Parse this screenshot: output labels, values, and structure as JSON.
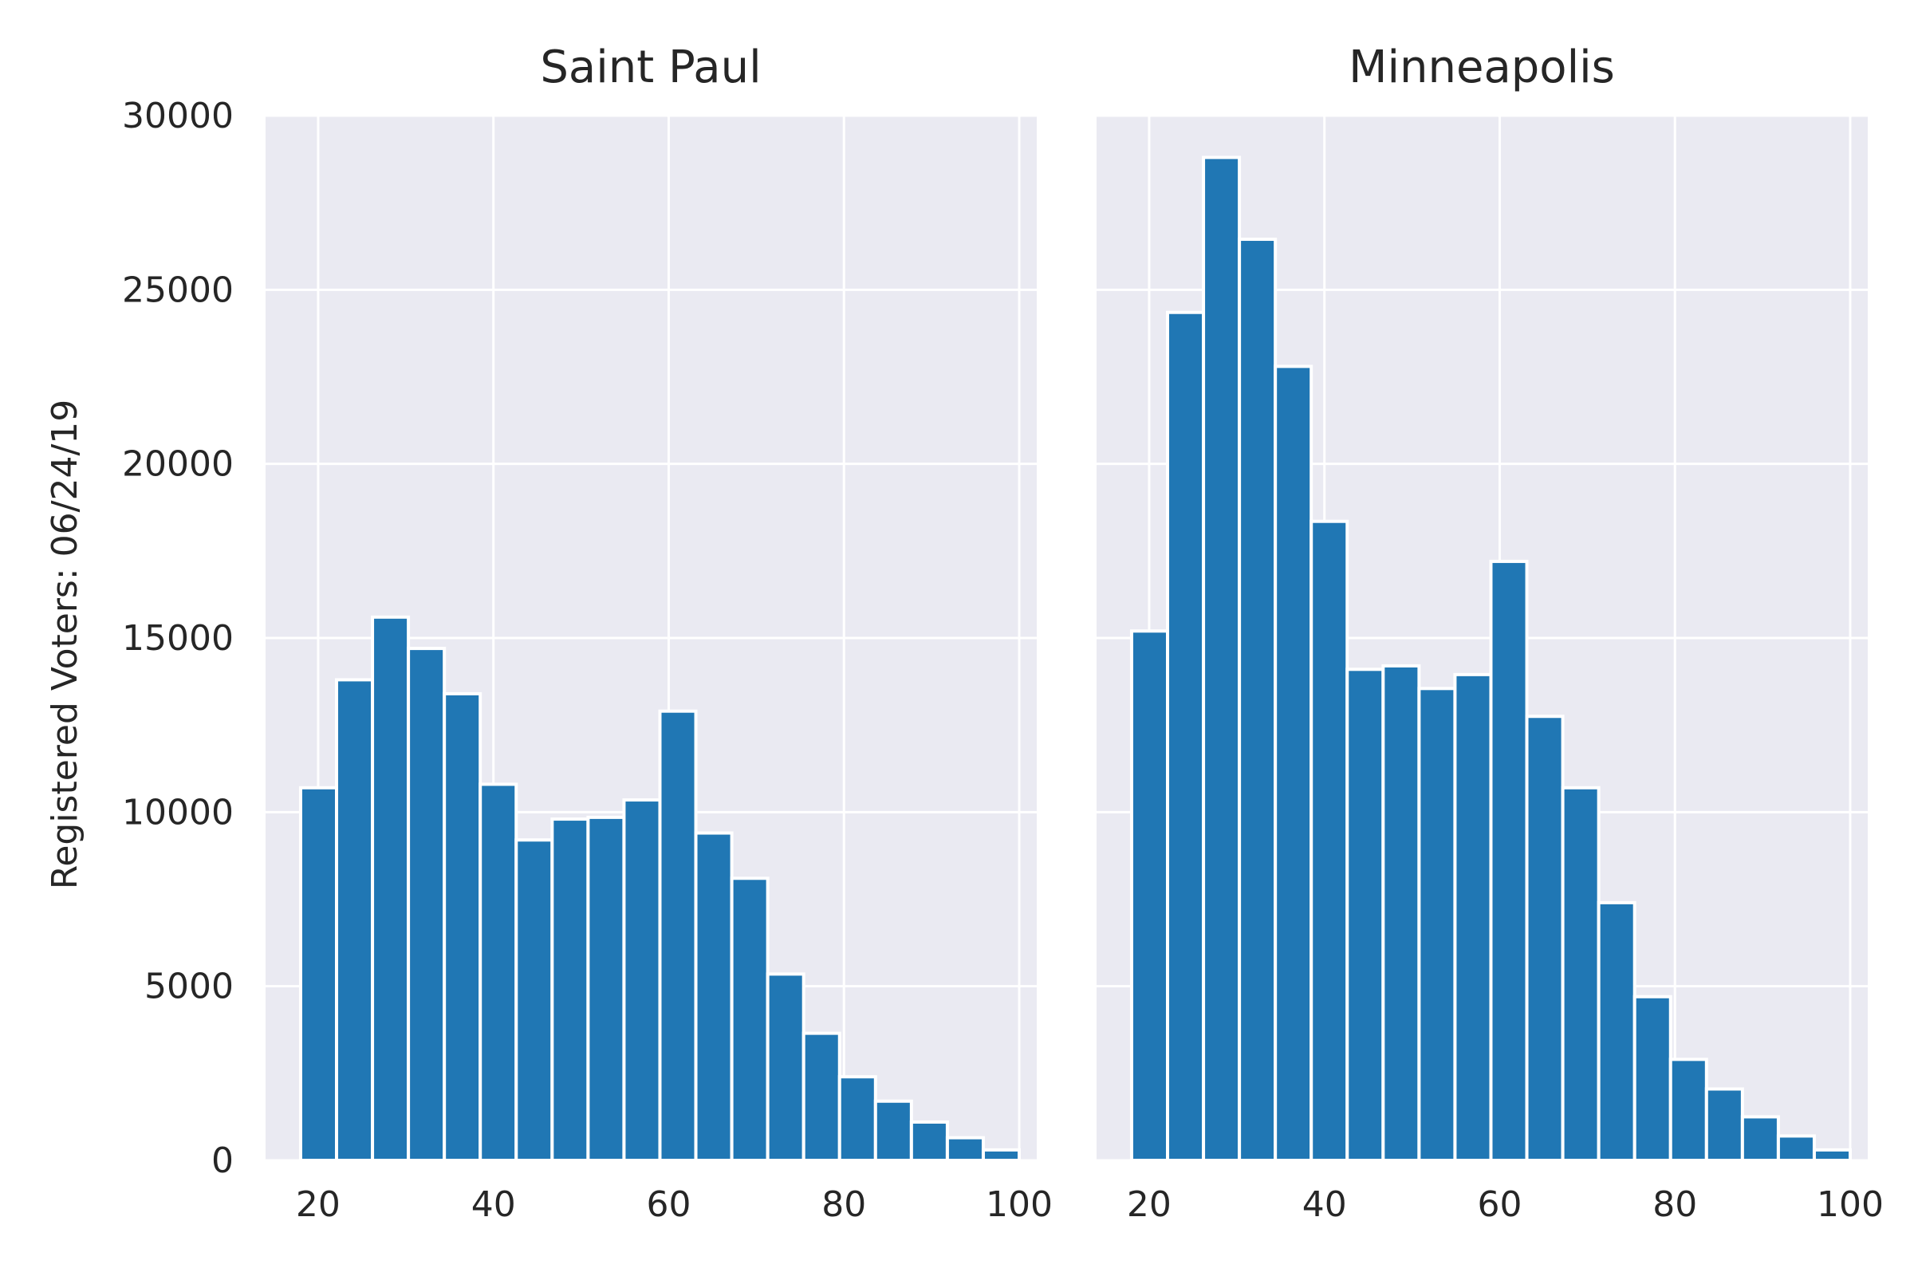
{
  "chart_data": [
    {
      "type": "bar",
      "title": "Saint Paul",
      "xlabel": "",
      "ylabel": "Registered Voters: 06/24/19",
      "xlim": [
        14,
        102
      ],
      "ylim": [
        0,
        30000
      ],
      "xticks": [
        20,
        40,
        60,
        80,
        100
      ],
      "yticks": [
        0,
        5000,
        10000,
        15000,
        20000,
        25000,
        30000
      ],
      "bin_start": 18,
      "bin_width": 4.1,
      "values": [
        10700,
        13800,
        15600,
        14700,
        13400,
        10800,
        9200,
        9800,
        9850,
        10350,
        12900,
        9400,
        8100,
        5350,
        3650,
        2400,
        1700,
        1100,
        650,
        300
      ],
      "color": "#2077b4"
    },
    {
      "type": "bar",
      "title": "Minneapolis",
      "xlabel": "",
      "ylabel": "",
      "xlim": [
        14,
        102
      ],
      "ylim": [
        0,
        30000
      ],
      "xticks": [
        20,
        40,
        60,
        80,
        100
      ],
      "yticks": [
        0,
        5000,
        10000,
        15000,
        20000,
        25000,
        30000
      ],
      "bin_start": 18,
      "bin_width": 4.1,
      "values": [
        15200,
        24350,
        28800,
        26450,
        22800,
        18350,
        14100,
        14200,
        13550,
        13950,
        17200,
        12750,
        10700,
        7400,
        4700,
        2900,
        2050,
        1250,
        700,
        300
      ],
      "color": "#2077b4"
    }
  ]
}
